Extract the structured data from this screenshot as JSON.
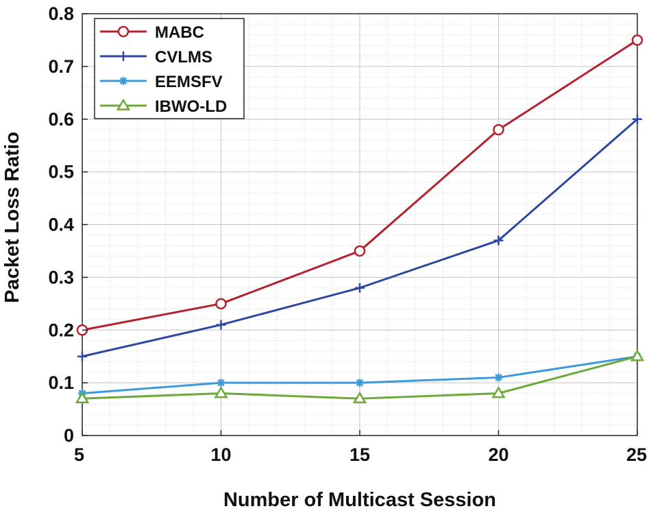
{
  "chart_data": {
    "type": "line",
    "title": "",
    "xlabel": "Number of Multicast Session",
    "ylabel": "Packet Loss Ratio",
    "x": [
      5,
      10,
      15,
      20,
      25
    ],
    "xlim": [
      5,
      25
    ],
    "ylim": [
      0,
      0.8
    ],
    "xticks": [
      5,
      10,
      15,
      20,
      25
    ],
    "yticks": [
      0,
      0.1,
      0.2,
      0.3,
      0.4,
      0.5,
      0.6,
      0.7,
      0.8
    ],
    "ytick_labels": [
      "0",
      "0.1",
      "0.2",
      "0.3",
      "0.4",
      "0.5",
      "0.6",
      "0.7",
      "0.8"
    ],
    "grid": true,
    "legend_position": "top-left",
    "series": [
      {
        "name": "MABC",
        "values": [
          0.2,
          0.25,
          0.35,
          0.58,
          0.75
        ],
        "color": "#b5212e",
        "marker": "circle"
      },
      {
        "name": "CVLMS",
        "values": [
          0.15,
          0.21,
          0.28,
          0.37,
          0.6
        ],
        "color": "#2c47a0",
        "marker": "plus"
      },
      {
        "name": "EEMSFV",
        "values": [
          0.08,
          0.1,
          0.1,
          0.11,
          0.15
        ],
        "color": "#3b9ad9",
        "marker": "asterisk"
      },
      {
        "name": "IBWO-LD",
        "values": [
          0.07,
          0.08,
          0.07,
          0.08,
          0.15
        ],
        "color": "#6da83a",
        "marker": "triangle"
      }
    ]
  }
}
